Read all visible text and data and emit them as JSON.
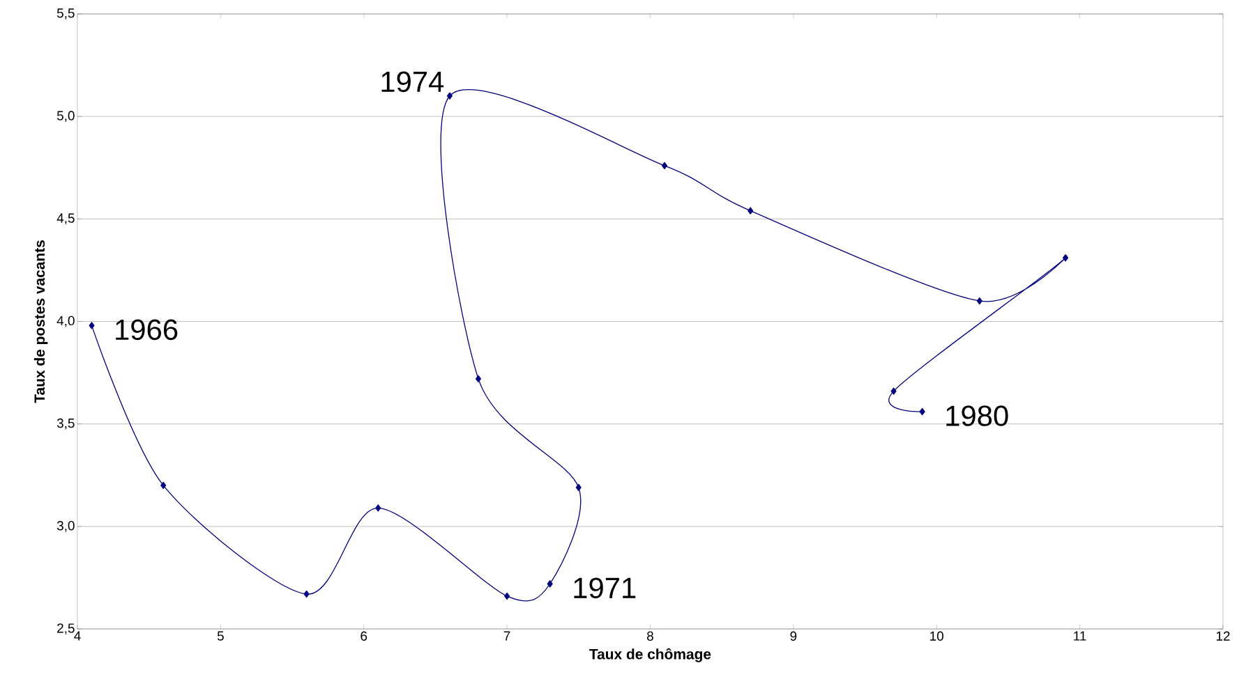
{
  "chart_data": {
    "type": "line",
    "xlabel": "Taux de chômage",
    "ylabel": "Taux de postes vacants",
    "x": [
      4.1,
      4.6,
      5.6,
      6.1,
      7.0,
      7.3,
      7.5,
      6.8,
      6.6,
      8.1,
      8.7,
      10.3,
      10.9,
      9.7,
      9.9
    ],
    "series": [
      {
        "color": "#000080",
        "values": [
          3.98,
          3.2,
          2.67,
          3.09,
          2.66,
          2.72,
          3.19,
          3.72,
          5.1,
          4.76,
          4.54,
          4.1,
          4.31,
          3.66,
          3.56
        ]
      }
    ],
    "xlim": [
      4,
      12
    ],
    "xticks": [
      4,
      5,
      6,
      7,
      8,
      9,
      10,
      11,
      12
    ],
    "ylim": [
      2.5,
      5.5
    ],
    "yticks": [
      {
        "value": 2.5,
        "label": "2,5"
      },
      {
        "value": 3.0,
        "label": "3,0"
      },
      {
        "value": 3.5,
        "label": "3,5"
      },
      {
        "value": 4.0,
        "label": "4,0"
      },
      {
        "value": 4.5,
        "label": "4,5"
      },
      {
        "value": 5.0,
        "label": "5,0"
      },
      {
        "value": 5.5,
        "label": "5,5"
      }
    ],
    "grid": "y",
    "marker": "diamond",
    "annotations": [
      {
        "text": "1966",
        "x": 4.1,
        "y": 3.98
      },
      {
        "text": "1974",
        "x": 6.6,
        "y": 5.1
      },
      {
        "text": "1971",
        "x": 7.3,
        "y": 2.72
      },
      {
        "text": "1980",
        "x": 9.9,
        "y": 3.56
      }
    ]
  }
}
